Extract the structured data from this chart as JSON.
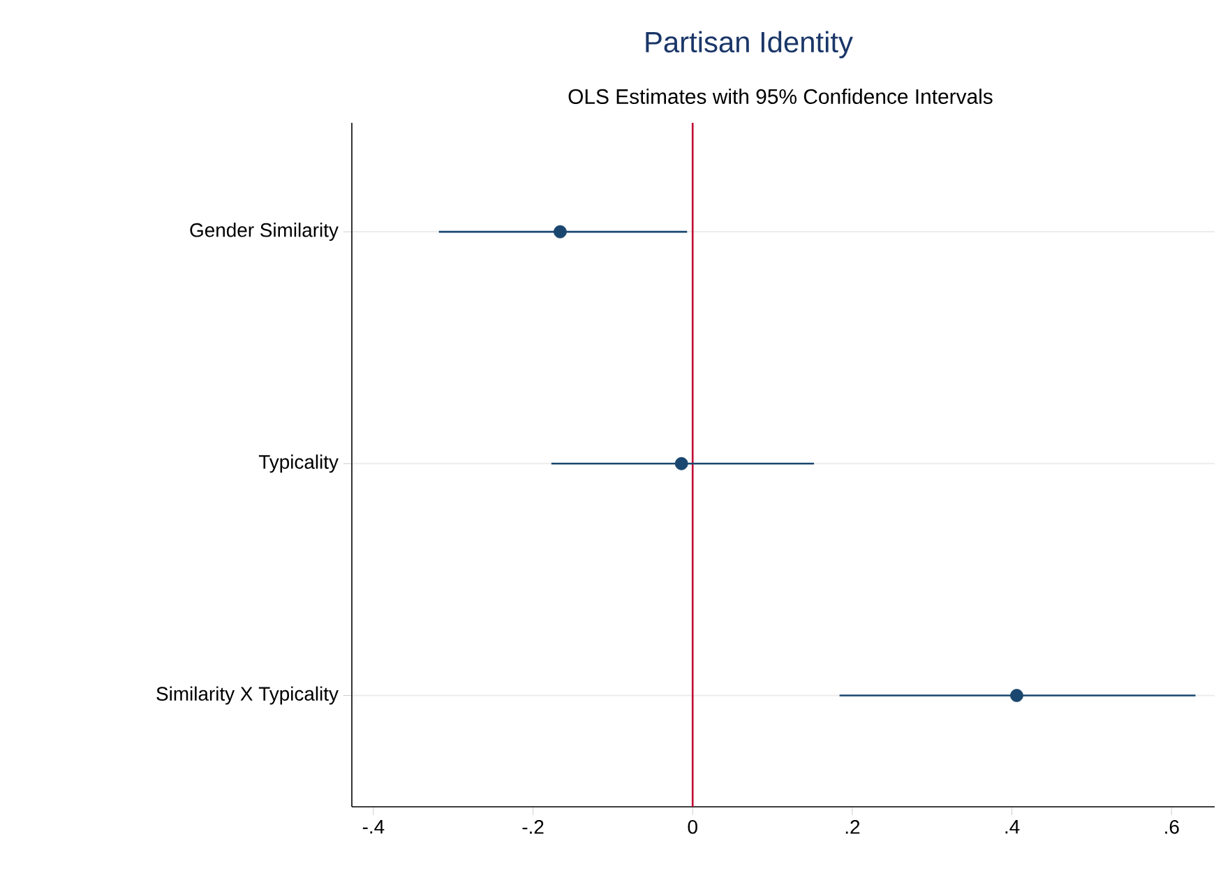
{
  "chart_data": {
    "type": "scatter",
    "title": "Partisan Identity",
    "subtitle": "OLS Estimates with 95% Confidence Intervals",
    "categories": [
      "Gender Similarity",
      "Typicality",
      "Similarity X Typicality"
    ],
    "values": [
      -0.166,
      -0.014,
      0.406
    ],
    "errors": [
      [
        -0.318,
        -0.007
      ],
      [
        -0.177,
        0.152
      ],
      [
        0.184,
        0.63
      ]
    ],
    "orientation": "horizontal",
    "color": "#1a476f",
    "marker": "circle",
    "grid": "y",
    "xlim": [
      -0.427,
      0.654
    ],
    "xticks": [
      {
        "value": -0.4,
        "label": "-.4"
      },
      {
        "value": -0.2,
        "label": "-.2"
      },
      {
        "value": 0,
        "label": "0"
      },
      {
        "value": 0.2,
        "label": ".2"
      },
      {
        "value": 0.4,
        "label": ".4"
      },
      {
        "value": 0.6,
        "label": ".6"
      }
    ],
    "ref_lines": [
      {
        "axis": "x",
        "value": 0,
        "color": "#c10534"
      }
    ]
  }
}
